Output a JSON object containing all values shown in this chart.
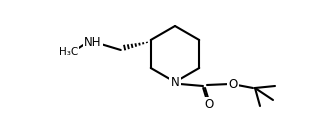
{
  "bg_color": "#ffffff",
  "line_color": "#000000",
  "line_width": 1.5,
  "bond_width": 1.5,
  "fig_width": 3.2,
  "fig_height": 1.34,
  "dpi": 100,
  "font_size": 8.5,
  "NH_label": "NH",
  "N_label": "N",
  "O_label": "O",
  "Me_label": "H₃C",
  "carbonyl_O": "O"
}
